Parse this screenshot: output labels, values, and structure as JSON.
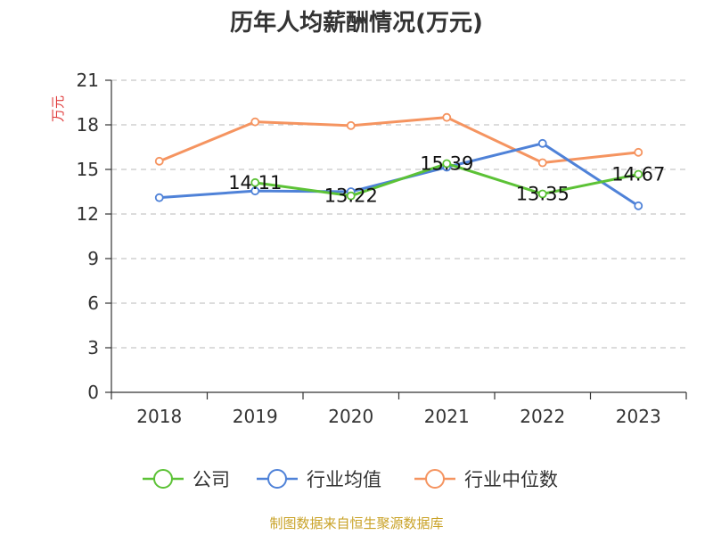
{
  "colors": {
    "company": "#5cc236",
    "industry_avg": "#4f82d8",
    "industry_median": "#f59460",
    "source": "#c9a227",
    "ylabel": "#e03b3b"
  },
  "chart_data": {
    "type": "line",
    "title": "历年人均薪酬情况(万元)",
    "ylabel": "万元",
    "xlabel": "",
    "categories": [
      "2018",
      "2019",
      "2020",
      "2021",
      "2022",
      "2023"
    ],
    "ylim": [
      0,
      21
    ],
    "yticks": [
      0,
      3,
      6,
      9,
      12,
      15,
      18,
      21
    ],
    "grid": true,
    "legend_position": "bottom",
    "series": [
      {
        "name": "公司",
        "key": "company",
        "values": [
          null,
          14.11,
          13.22,
          15.39,
          13.35,
          14.67
        ]
      },
      {
        "name": "行业均值",
        "key": "industry_avg",
        "values": [
          13.1,
          13.55,
          13.5,
          15.15,
          16.75,
          12.55
        ]
      },
      {
        "name": "行业中位数",
        "key": "industry_median",
        "values": [
          15.55,
          18.2,
          17.95,
          18.5,
          15.45,
          16.15
        ]
      }
    ],
    "data_labels": [
      {
        "series": "company",
        "index": 1,
        "text": "14.11"
      },
      {
        "series": "company",
        "index": 2,
        "text": "13.22"
      },
      {
        "series": "company",
        "index": 3,
        "text": "15.39"
      },
      {
        "series": "company",
        "index": 4,
        "text": "13.35"
      },
      {
        "series": "company",
        "index": 5,
        "text": "14.67"
      }
    ],
    "source": "制图数据来自恒生聚源数据库"
  }
}
